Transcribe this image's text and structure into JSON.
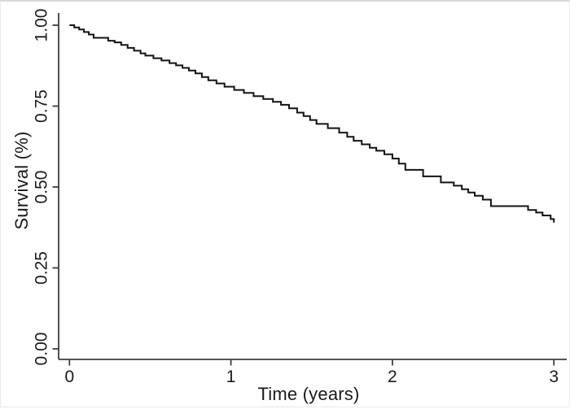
{
  "figure": {
    "background": "#ffffff",
    "frame_color": "#d8d8d8"
  },
  "chart_data": {
    "type": "line",
    "subtype": "step-survival-curve",
    "title": "",
    "xlabel": "Time (years)",
    "ylabel": "Survival (%)",
    "xlim": [
      0,
      3
    ],
    "ylim": [
      0.0,
      1.0
    ],
    "grid": false,
    "legend": null,
    "line_color": "#131313",
    "axis_color": "#3d3d3d",
    "tick_label_color": "#1a1a1a",
    "xticks": {
      "values": [
        0,
        1,
        2,
        3
      ],
      "labels": [
        "0",
        "1",
        "2",
        "3"
      ]
    },
    "yticks": {
      "values": [
        0.0,
        0.25,
        0.5,
        0.75,
        1.0
      ],
      "labels": [
        "0.00",
        "0.25",
        "0.50",
        "0.75",
        "1.00"
      ]
    },
    "series": [
      {
        "name": "survival",
        "steps": [
          [
            0.0,
            1.0
          ],
          [
            0.03,
            0.993
          ],
          [
            0.06,
            0.987
          ],
          [
            0.09,
            0.979
          ],
          [
            0.12,
            0.971
          ],
          [
            0.15,
            0.961
          ],
          [
            0.24,
            0.952
          ],
          [
            0.28,
            0.947
          ],
          [
            0.32,
            0.939
          ],
          [
            0.36,
            0.93
          ],
          [
            0.4,
            0.921
          ],
          [
            0.44,
            0.913
          ],
          [
            0.47,
            0.906
          ],
          [
            0.52,
            0.898
          ],
          [
            0.57,
            0.891
          ],
          [
            0.62,
            0.883
          ],
          [
            0.66,
            0.876
          ],
          [
            0.7,
            0.868
          ],
          [
            0.74,
            0.86
          ],
          [
            0.78,
            0.851
          ],
          [
            0.82,
            0.84
          ],
          [
            0.86,
            0.83
          ],
          [
            0.91,
            0.82
          ],
          [
            0.96,
            0.81
          ],
          [
            1.02,
            0.8
          ],
          [
            1.08,
            0.791
          ],
          [
            1.14,
            0.781
          ],
          [
            1.2,
            0.772
          ],
          [
            1.26,
            0.763
          ],
          [
            1.31,
            0.754
          ],
          [
            1.36,
            0.743
          ],
          [
            1.41,
            0.73
          ],
          [
            1.45,
            0.719
          ],
          [
            1.49,
            0.707
          ],
          [
            1.53,
            0.695
          ],
          [
            1.6,
            0.682
          ],
          [
            1.67,
            0.668
          ],
          [
            1.72,
            0.655
          ],
          [
            1.76,
            0.643
          ],
          [
            1.81,
            0.632
          ],
          [
            1.86,
            0.621
          ],
          [
            1.9,
            0.612
          ],
          [
            1.95,
            0.601
          ],
          [
            2.0,
            0.588
          ],
          [
            2.04,
            0.572
          ],
          [
            2.08,
            0.553
          ],
          [
            2.19,
            0.533
          ],
          [
            2.3,
            0.514
          ],
          [
            2.38,
            0.504
          ],
          [
            2.43,
            0.493
          ],
          [
            2.47,
            0.483
          ],
          [
            2.51,
            0.473
          ],
          [
            2.56,
            0.461
          ],
          [
            2.61,
            0.441
          ],
          [
            2.84,
            0.429
          ],
          [
            2.89,
            0.421
          ],
          [
            2.93,
            0.412
          ],
          [
            2.98,
            0.401
          ],
          [
            3.0,
            0.39
          ]
        ]
      }
    ]
  }
}
